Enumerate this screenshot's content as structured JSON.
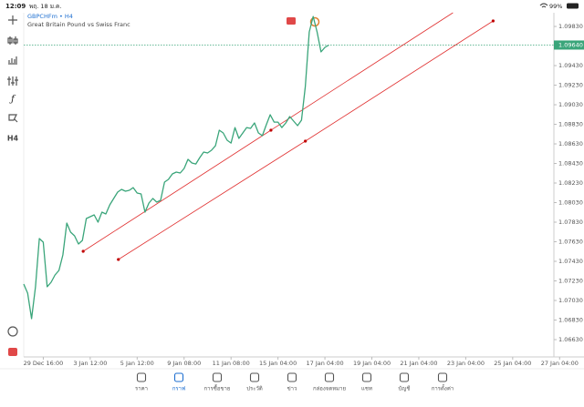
{
  "status_bar": {
    "time": "12:09",
    "date": "พฤ. 18 ม.ค.",
    "battery": "99%"
  },
  "toolbar": {
    "timeframe": "H4"
  },
  "chart_data": {
    "type": "line",
    "title": "GBPCHFm • H4",
    "subtitle": "Great Britain Pound vs Swiss Franc",
    "color": "#3aa57a",
    "values": [
      1.07197,
      1.07104,
      1.06844,
      1.0717,
      1.07663,
      1.07625,
      1.0717,
      1.07216,
      1.0729,
      1.07337,
      1.07495,
      1.07821,
      1.07728,
      1.0769,
      1.07607,
      1.07644,
      1.07867,
      1.07886,
      1.07904,
      1.0783,
      1.07932,
      1.07914,
      1.08007,
      1.08072,
      1.08137,
      1.08165,
      1.08146,
      1.08156,
      1.08183,
      1.08128,
      1.08118,
      1.07932,
      1.08025,
      1.08072,
      1.08035,
      1.08053,
      1.08239,
      1.08267,
      1.08323,
      1.08342,
      1.08332,
      1.08379,
      1.08472,
      1.08435,
      1.08425,
      1.0849,
      1.08546,
      1.08537,
      1.08565,
      1.08611,
      1.0877,
      1.08742,
      1.08667,
      1.08639,
      1.08797,
      1.08686,
      1.08742,
      1.08797,
      1.08788,
      1.08844,
      1.08742,
      1.08714,
      1.08825,
      1.08928,
      1.08853,
      1.08853,
      1.08797,
      1.08844,
      1.08909,
      1.08863,
      1.08816,
      1.08872,
      1.09216,
      1.09774,
      1.09932,
      1.09774,
      1.0957,
      1.09616,
      1.0964
    ],
    "xlim": [
      0,
      136
    ],
    "xticks": [
      {
        "value": 5,
        "label": "29 Dec 16:00"
      },
      {
        "value": 17,
        "label": "3 Jan 12:00"
      },
      {
        "value": 29,
        "label": "5 Jan 12:00"
      },
      {
        "value": 41,
        "label": "9 Jan 08:00"
      },
      {
        "value": 53,
        "label": "11 Jan 08:00"
      },
      {
        "value": 65,
        "label": "15 Jan 04:00"
      },
      {
        "value": 77,
        "label": "17 Jan 04:00"
      },
      {
        "value": 89,
        "label": "19 Jan 04:00"
      },
      {
        "value": 101,
        "label": "21 Jan 04:00"
      },
      {
        "value": 113,
        "label": "23 Jan 04:00"
      },
      {
        "value": 125,
        "label": "25 Jan 04:00"
      },
      {
        "value": 137,
        "label": "27 Jan 04:00"
      }
    ],
    "ylim": [
      1.06453,
      1.0997
    ],
    "yticks": [
      {
        "value": 1.0983,
        "label": "1.09830"
      },
      {
        "value": 1.0943,
        "label": "1.09430"
      },
      {
        "value": 1.0923,
        "label": "1.09230"
      },
      {
        "value": 1.0903,
        "label": "1.09030"
      },
      {
        "value": 1.0883,
        "label": "1.08830"
      },
      {
        "value": 1.0863,
        "label": "1.08630"
      },
      {
        "value": 1.0843,
        "label": "1.08430"
      },
      {
        "value": 1.0823,
        "label": "1.08230"
      },
      {
        "value": 1.0803,
        "label": "1.08030"
      },
      {
        "value": 1.0783,
        "label": "1.07830"
      },
      {
        "value": 1.0763,
        "label": "1.07630"
      },
      {
        "value": 1.0743,
        "label": "1.07430"
      },
      {
        "value": 1.0723,
        "label": "1.07230"
      },
      {
        "value": 1.0703,
        "label": "1.07030"
      },
      {
        "value": 1.0683,
        "label": "1.06830"
      },
      {
        "value": 1.0663,
        "label": "1.06630"
      }
    ],
    "current_price": {
      "value": 1.0964,
      "label": "1.09640"
    },
    "trendlines": [
      {
        "color": "#e03030",
        "ray": true,
        "points": [
          [
            15.2,
            1.07532
          ],
          [
            63.2,
            1.0877
          ]
        ]
      },
      {
        "color": "#e03030",
        "points": [
          [
            24.2,
            1.07449
          ],
          [
            72,
            1.08658
          ],
          [
            120,
            1.09886
          ]
        ]
      }
    ]
  },
  "nav": {
    "items": [
      "ราคา",
      "กราฟ",
      "การซื้อขาย",
      "ประวัติ",
      "ข่าว",
      "กล่องจดหมาย",
      "แชท",
      "บัญชี",
      "การตั้งค่า"
    ]
  }
}
